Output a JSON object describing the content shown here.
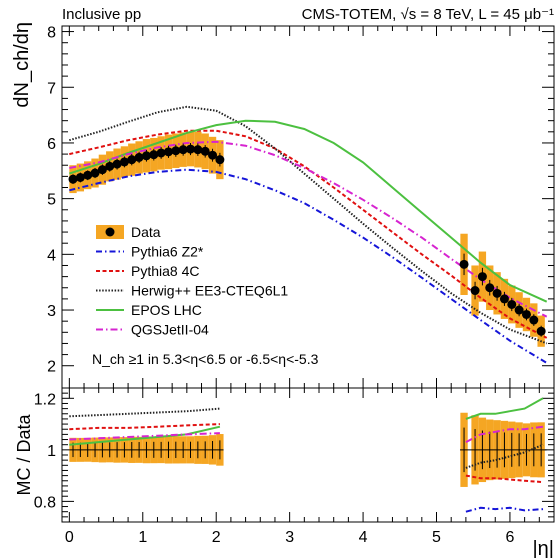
{
  "chart_data": {
    "type": "line",
    "header_left": "Inclusive pp",
    "header_right": "CMS-TOTEM, √s = 8 TeV, L = 45 μb⁻¹",
    "xlabel": "|η|",
    "ylabel_top": "dN_ch/dη",
    "ylabel_bottom": "MC / Data",
    "selection_label": "N_ch ≥1 in 5.3<η<6.5 or -6.5<η<-5.3",
    "xlim": [
      -0.1,
      6.6
    ],
    "top_ylim": [
      1.6,
      8.1
    ],
    "bottom_ylim": [
      0.72,
      1.24
    ],
    "x_ticks": [
      "0",
      "1",
      "2",
      "3",
      "4",
      "5",
      "6"
    ],
    "top_y_ticks": [
      "2",
      "3",
      "4",
      "5",
      "6",
      "7",
      "8"
    ],
    "bottom_y_ticks": [
      "0.8",
      "1",
      "1.2"
    ],
    "legend": [
      "Data",
      "Pythia6 Z2*",
      "Pythia8 4C",
      "Herwig++ EE3-CTEQ6L1",
      "EPOS LHC",
      "QGSJetII-04"
    ],
    "data_central": {
      "x": [
        0.05,
        0.15,
        0.25,
        0.35,
        0.45,
        0.55,
        0.65,
        0.75,
        0.85,
        0.95,
        1.05,
        1.15,
        1.25,
        1.35,
        1.45,
        1.55,
        1.65,
        1.75,
        1.85,
        1.95,
        2.05
      ],
      "y": [
        5.35,
        5.38,
        5.42,
        5.46,
        5.52,
        5.58,
        5.62,
        5.66,
        5.7,
        5.74,
        5.77,
        5.79,
        5.82,
        5.84,
        5.86,
        5.88,
        5.89,
        5.88,
        5.85,
        5.78,
        5.7
      ],
      "err": [
        0.25,
        0.25,
        0.25,
        0.26,
        0.27,
        0.27,
        0.28,
        0.28,
        0.29,
        0.29,
        0.3,
        0.3,
        0.3,
        0.31,
        0.31,
        0.31,
        0.31,
        0.32,
        0.32,
        0.33,
        0.35
      ]
    },
    "data_forward": {
      "x": [
        5.375,
        5.525,
        5.625,
        5.725,
        5.825,
        5.925,
        6.025,
        6.125,
        6.225,
        6.325,
        6.425
      ],
      "y": [
        3.82,
        3.35,
        3.6,
        3.4,
        3.3,
        3.2,
        3.1,
        3.0,
        2.92,
        2.82,
        2.62
      ],
      "err": [
        0.55,
        0.45,
        0.45,
        0.4,
        0.38,
        0.36,
        0.34,
        0.32,
        0.3,
        0.3,
        0.28
      ]
    },
    "series": [
      {
        "name": "Pythia6 Z2*",
        "color": "#1515d8",
        "x": [
          0.0,
          0.4,
          0.8,
          1.2,
          1.6,
          2.0,
          2.4,
          2.8,
          3.2,
          3.6,
          4.0,
          4.4,
          4.8,
          5.2,
          5.6,
          6.0,
          6.5
        ],
        "y": [
          5.15,
          5.28,
          5.4,
          5.48,
          5.52,
          5.48,
          5.35,
          5.15,
          4.92,
          4.62,
          4.3,
          3.95,
          3.58,
          3.2,
          2.82,
          2.45,
          2.05
        ],
        "ratio": {
          "fwd_x": [
            5.4,
            5.6,
            5.8,
            6.0,
            6.2,
            6.45
          ],
          "fwd_y": [
            0.76,
            0.775,
            0.77,
            0.775,
            0.765,
            0.77
          ]
        }
      },
      {
        "name": "Pythia8 4C",
        "color": "#e01010",
        "x": [
          0.0,
          0.4,
          0.8,
          1.2,
          1.6,
          2.0,
          2.4,
          2.8,
          3.2,
          3.6,
          4.0,
          4.4,
          4.8,
          5.2,
          5.6,
          6.0,
          6.5
        ],
        "y": [
          5.8,
          5.92,
          6.05,
          6.15,
          6.22,
          6.22,
          6.12,
          5.9,
          5.58,
          5.2,
          4.8,
          4.4,
          4.0,
          3.62,
          3.22,
          2.85,
          2.5
        ],
        "ratio": {
          "cen_x": [
            0.0,
            0.4,
            0.8,
            1.2,
            1.6,
            2.05
          ],
          "cen_y": [
            1.08,
            1.085,
            1.085,
            1.09,
            1.095,
            1.1
          ],
          "fwd_x": [
            5.4,
            5.6,
            5.8,
            6.0,
            6.2,
            6.45
          ],
          "fwd_y": [
            0.9,
            0.89,
            0.89,
            0.885,
            0.88,
            0.875
          ]
        }
      },
      {
        "name": "Herwig++ EE3-CTEQ6L1",
        "color": "#222222",
        "x": [
          0.0,
          0.4,
          0.8,
          1.2,
          1.6,
          2.0,
          2.4,
          2.8,
          3.2,
          3.6,
          4.0,
          4.4,
          4.8,
          5.2,
          5.6,
          6.0,
          6.5
        ],
        "y": [
          6.05,
          6.2,
          6.38,
          6.55,
          6.65,
          6.58,
          6.3,
          5.9,
          5.45,
          5.0,
          4.55,
          4.12,
          3.7,
          3.3,
          2.95,
          2.65,
          2.4
        ],
        "ratio": {
          "cen_x": [
            0.0,
            0.4,
            0.8,
            1.2,
            1.6,
            2.05
          ],
          "cen_y": [
            1.13,
            1.135,
            1.14,
            1.145,
            1.15,
            1.16
          ],
          "fwd_x": [
            5.4,
            5.6,
            5.8,
            6.0,
            6.2,
            6.45
          ],
          "fwd_y": [
            0.93,
            0.95,
            0.96,
            0.975,
            0.99,
            1.02
          ]
        }
      },
      {
        "name": "EPOS LHC",
        "color": "#4cc040",
        "x": [
          0.0,
          0.4,
          0.8,
          1.2,
          1.6,
          2.0,
          2.4,
          2.8,
          3.2,
          3.6,
          4.0,
          4.4,
          4.8,
          5.2,
          5.6,
          6.0,
          6.5
        ],
        "y": [
          5.45,
          5.62,
          5.82,
          6.0,
          6.18,
          6.32,
          6.4,
          6.38,
          6.25,
          6.0,
          5.65,
          5.2,
          4.75,
          4.3,
          3.85,
          3.45,
          3.15
        ],
        "ratio": {
          "cen_x": [
            0.0,
            0.4,
            0.8,
            1.2,
            1.6,
            2.05
          ],
          "cen_y": [
            1.02,
            1.03,
            1.04,
            1.05,
            1.06,
            1.09
          ],
          "fwd_x": [
            5.4,
            5.6,
            5.8,
            6.0,
            6.2,
            6.45
          ],
          "fwd_y": [
            1.12,
            1.14,
            1.14,
            1.15,
            1.16,
            1.2
          ]
        }
      },
      {
        "name": "QGSJetII-04",
        "color": "#d624d0",
        "x": [
          0.0,
          0.4,
          0.8,
          1.2,
          1.6,
          2.0,
          2.4,
          2.8,
          3.2,
          3.6,
          4.0,
          4.4,
          4.8,
          5.2,
          5.6,
          6.0,
          6.5
        ],
        "y": [
          5.55,
          5.65,
          5.8,
          5.92,
          6.0,
          6.02,
          5.95,
          5.78,
          5.55,
          5.28,
          4.98,
          4.65,
          4.3,
          3.92,
          3.55,
          3.22,
          2.88
        ],
        "ratio": {
          "cen_x": [
            0.0,
            0.4,
            0.8,
            1.2,
            1.6,
            2.05
          ],
          "cen_y": [
            1.04,
            1.045,
            1.05,
            1.055,
            1.06,
            1.065
          ],
          "fwd_x": [
            5.4,
            5.6,
            5.8,
            6.0,
            6.2,
            6.45
          ],
          "fwd_y": [
            1.03,
            1.06,
            1.07,
            1.08,
            1.08,
            1.09
          ]
        }
      }
    ]
  }
}
